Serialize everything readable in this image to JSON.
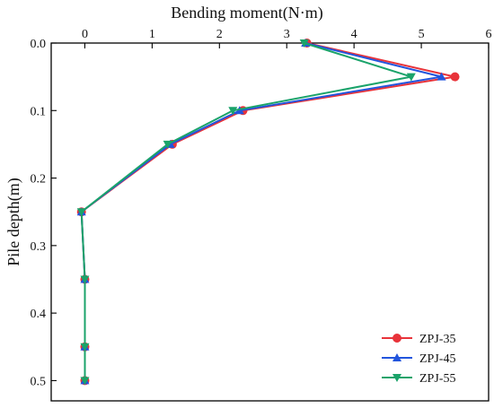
{
  "chart_data": {
    "type": "line",
    "title": "",
    "xlabel": "Bending moment(N·m)",
    "ylabel": "Pile depth(m)",
    "x_axis_position": "top",
    "y_axis_inverted": true,
    "xlim": [
      -0.5,
      6
    ],
    "ylim": [
      0,
      0.53
    ],
    "x_ticks": [
      0,
      1,
      2,
      3,
      4,
      5,
      6
    ],
    "y_ticks": [
      0.0,
      0.1,
      0.2,
      0.3,
      0.4,
      0.5
    ],
    "x_tick_labels": [
      "0",
      "1",
      "2",
      "3",
      "4",
      "5",
      "6"
    ],
    "y_tick_labels": [
      "0.0",
      "0.1",
      "0.2",
      "0.3",
      "0.4",
      "0.5"
    ],
    "legend_position": "bottom-right",
    "grid": false,
    "series": [
      {
        "name": "ZPJ-35",
        "color": "#e8333a",
        "marker": "circle",
        "points": [
          {
            "x": 3.3,
            "y": 0.0
          },
          {
            "x": 5.5,
            "y": 0.05
          },
          {
            "x": 2.35,
            "y": 0.1
          },
          {
            "x": 1.3,
            "y": 0.15
          },
          {
            "x": -0.05,
            "y": 0.25
          },
          {
            "x": 0.0,
            "y": 0.35
          },
          {
            "x": 0.0,
            "y": 0.45
          },
          {
            "x": 0.0,
            "y": 0.5
          }
        ]
      },
      {
        "name": "ZPJ-45",
        "color": "#2255dd",
        "marker": "triangle-up",
        "points": [
          {
            "x": 3.28,
            "y": 0.0
          },
          {
            "x": 5.3,
            "y": 0.05
          },
          {
            "x": 2.3,
            "y": 0.1
          },
          {
            "x": 1.27,
            "y": 0.15
          },
          {
            "x": -0.05,
            "y": 0.25
          },
          {
            "x": 0.0,
            "y": 0.35
          },
          {
            "x": 0.0,
            "y": 0.45
          },
          {
            "x": 0.0,
            "y": 0.5
          }
        ]
      },
      {
        "name": "ZPJ-55",
        "color": "#1aa36a",
        "marker": "triangle-down",
        "points": [
          {
            "x": 3.26,
            "y": 0.0
          },
          {
            "x": 4.85,
            "y": 0.05
          },
          {
            "x": 2.2,
            "y": 0.1
          },
          {
            "x": 1.23,
            "y": 0.15
          },
          {
            "x": -0.05,
            "y": 0.25
          },
          {
            "x": 0.0,
            "y": 0.35
          },
          {
            "x": 0.0,
            "y": 0.45
          },
          {
            "x": 0.0,
            "y": 0.5
          }
        ]
      }
    ]
  }
}
